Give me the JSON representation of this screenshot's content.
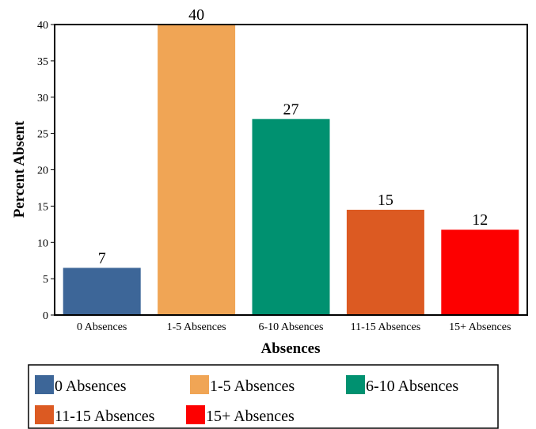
{
  "chart_data": {
    "type": "bar",
    "title": "",
    "xlabel": "Absences",
    "ylabel": "Percent Absent",
    "categories": [
      "0 Absences",
      "1-5 Absences",
      "6-10 Absences",
      "11-15 Absences",
      "15+ Absences"
    ],
    "values": [
      6.5,
      40,
      27,
      14.5,
      11.75
    ],
    "value_labels": [
      "7",
      "40",
      "27",
      "15",
      "12"
    ],
    "colors": [
      "#3d6698",
      "#f0a555",
      "#009170",
      "#dc5a22",
      "#fd0000"
    ],
    "yticks": [
      "0",
      "5",
      "10",
      "15",
      "20",
      "25",
      "30",
      "35",
      "40"
    ],
    "ylim": [
      0,
      40
    ],
    "grid": false,
    "legend": {
      "placement": "bottom",
      "entries": [
        "0 Absences",
        "1-5 Absences",
        "6-10 Absences",
        "11-15 Absences",
        "15+ Absences"
      ]
    }
  }
}
